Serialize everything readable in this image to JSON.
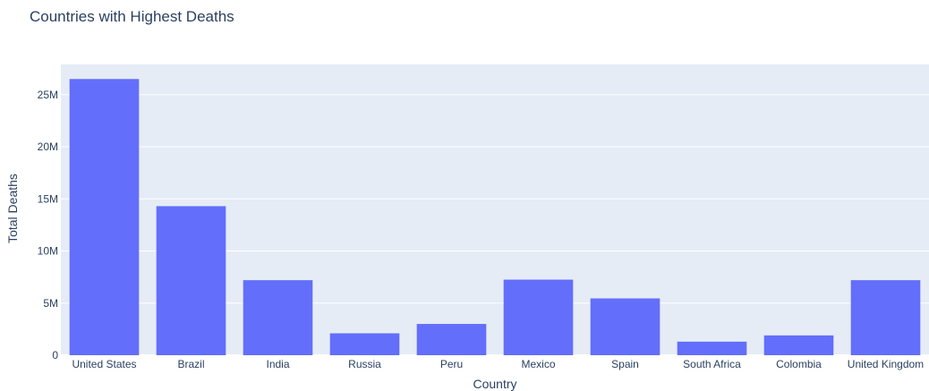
{
  "chart_data": {
    "type": "bar",
    "title": "Countries with Highest Deaths",
    "xlabel": "Country",
    "ylabel": "Total Deaths",
    "categories": [
      "United States",
      "Brazil",
      "India",
      "Russia",
      "Peru",
      "Mexico",
      "Spain",
      "South Africa",
      "Colombia",
      "United Kingdom"
    ],
    "values": [
      26500000,
      14300000,
      7200000,
      2100000,
      3000000,
      7250000,
      5450000,
      1300000,
      1900000,
      7200000
    ],
    "ylim": [
      0,
      27900000
    ],
    "yticks": [
      0,
      5000000,
      10000000,
      15000000,
      20000000,
      25000000
    ],
    "ytick_labels": [
      "0",
      "5M",
      "10M",
      "15M",
      "20M",
      "25M"
    ],
    "grid": true,
    "legend": "none",
    "colors": {
      "bar": "#636efa",
      "plot_bg": "#e5ecf6",
      "grid": "#ffffff",
      "text": "#2a3f5f"
    }
  }
}
